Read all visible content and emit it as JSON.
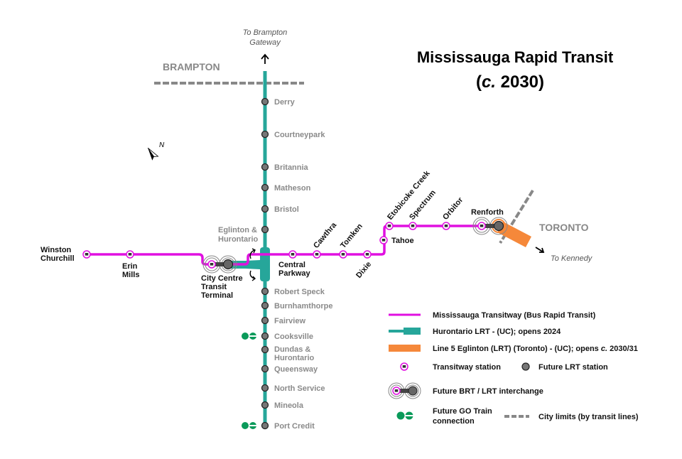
{
  "title_line1": "Mississauga Rapid Transit",
  "title_line2_prefix": "(",
  "title_line2_c": "c.",
  "title_line2_year": " 2030)",
  "regions": {
    "brampton": "BRAMPTON",
    "toronto": "TORONTO"
  },
  "directions": {
    "north_line1": "To Brampton",
    "north_line2": "Gateway",
    "east": "To Kennedy"
  },
  "compass_label": "N",
  "colors": {
    "transitway": "#e010e0",
    "hurontario_lrt": "#26a69a",
    "eglinton": "#f5883a",
    "city_limits": "#888888",
    "go": "#0a9a5a"
  },
  "lrt_stations": [
    {
      "name": "Derry"
    },
    {
      "name": "Courtneypark"
    },
    {
      "name": "Britannia"
    },
    {
      "name": "Matheson"
    },
    {
      "name": "Bristol"
    },
    {
      "name": "Eglinton & Hurontario"
    },
    {
      "name": "Robert Speck"
    },
    {
      "name": "Burnhamthorpe"
    },
    {
      "name": "Fairview"
    },
    {
      "name": "Cooksville",
      "go": true
    },
    {
      "name": "Dundas & Hurontario"
    },
    {
      "name": "Queensway"
    },
    {
      "name": "North Service"
    },
    {
      "name": "Mineola"
    },
    {
      "name": "Port Credit",
      "go": true
    }
  ],
  "transitway_stations": [
    {
      "name": "Winston Churchill"
    },
    {
      "name": "Erin Mills"
    },
    {
      "name": "City Centre Transit Terminal"
    },
    {
      "name": "Central Parkway"
    },
    {
      "name": "Cawthra"
    },
    {
      "name": "Tomken"
    },
    {
      "name": "Dixie"
    },
    {
      "name": "Tahoe"
    },
    {
      "name": "Etobicoke Creek"
    },
    {
      "name": "Spectrum"
    },
    {
      "name": "Orbitor"
    },
    {
      "name": "Renforth"
    }
  ],
  "legend": {
    "transitway": "Mississauga Transitway (Bus Rapid Transit)",
    "lrt": "Hurontario LRT - (UC); opens 2024",
    "eglinton_prefix": "Line 5 Eglinton (LRT) (Toronto) - (UC); opens ",
    "eglinton_c": "c.",
    "eglinton_year": " 2030/31",
    "transitway_station": "Transitway station",
    "lrt_station": "Future LRT station",
    "interchange": "Future BRT / LRT interchange",
    "go_line1": "Future GO Train",
    "go_line2": "connection",
    "city_limits": "City limits (by transit lines)"
  }
}
